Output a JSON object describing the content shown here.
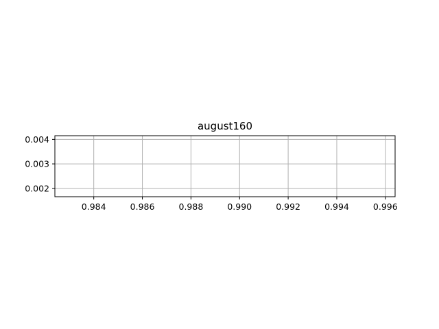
{
  "chart_data": {
    "type": "line",
    "title": "august160",
    "xlabel": "",
    "ylabel": "",
    "xlim": [
      0.9824,
      0.9964
    ],
    "ylim": [
      0.00166,
      0.00415
    ],
    "xticks": [
      0.984,
      0.986,
      0.988,
      0.99,
      0.992,
      0.994,
      0.996
    ],
    "xtick_labels": [
      "0.984",
      "0.986",
      "0.988",
      "0.990",
      "0.992",
      "0.994",
      "0.996"
    ],
    "yticks": [
      0.002,
      0.003,
      0.004
    ],
    "ytick_labels": [
      "0.002",
      "0.003",
      "0.004"
    ],
    "grid": true,
    "series": [],
    "colors": {
      "grid": "#b0b0b0",
      "axes": "#000000",
      "background": "#ffffff"
    }
  }
}
